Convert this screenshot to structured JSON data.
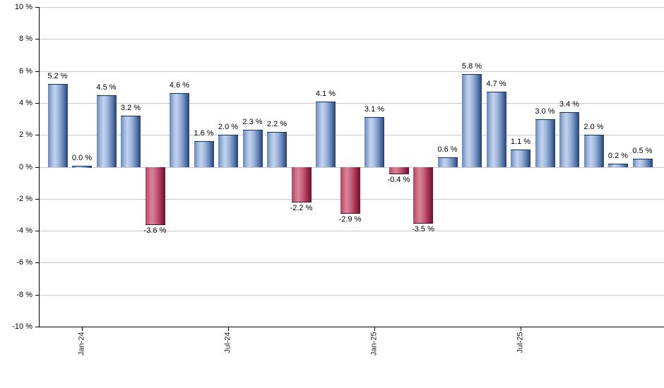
{
  "chart_data": {
    "type": "bar",
    "title": "",
    "xlabel": "",
    "ylabel": "",
    "ylim": [
      -10,
      10
    ],
    "grid": true,
    "y_ticks": [
      {
        "value": 10,
        "label": "10 %"
      },
      {
        "value": 8,
        "label": "8 %"
      },
      {
        "value": 6,
        "label": "6 %"
      },
      {
        "value": 4,
        "label": "4 %"
      },
      {
        "value": 2,
        "label": "2 %"
      },
      {
        "value": 0,
        "label": "0 %"
      },
      {
        "value": -2,
        "label": "-2 %"
      },
      {
        "value": -4,
        "label": "-4 %"
      },
      {
        "value": -6,
        "label": "-6 %"
      },
      {
        "value": -8,
        "label": "-8 %"
      },
      {
        "value": -10,
        "label": "-10 %"
      }
    ],
    "x_ticks": [
      {
        "index": 1,
        "label": "Jan-24"
      },
      {
        "index": 7,
        "label": "Jul-24"
      },
      {
        "index": 13,
        "label": "Jan-25"
      },
      {
        "index": 19,
        "label": "Jul-25"
      }
    ],
    "values": [
      5.2,
      0.0,
      4.5,
      3.2,
      -3.6,
      4.6,
      1.6,
      2.0,
      2.3,
      2.2,
      -2.2,
      4.1,
      -2.9,
      3.1,
      -0.4,
      -3.5,
      0.6,
      5.8,
      4.7,
      1.1,
      3.0,
      3.4,
      2.0,
      0.2,
      0.5
    ],
    "value_labels": [
      "5.2 %",
      "0.0 %",
      "4.5 %",
      "3.2 %",
      "-3.6 %",
      "4.6 %",
      "1.6 %",
      "2.0 %",
      "2.3 %",
      "2.2 %",
      "-2.2 %",
      "4.1 %",
      "-2.9 %",
      "3.1 %",
      "-0.4 %",
      "-3.5 %",
      "0.6 %",
      "5.8 %",
      "4.7 %",
      "1.1 %",
      "3.0 %",
      "3.4 %",
      "2.0 %",
      "0.2 %",
      "0.5 %"
    ],
    "colors": {
      "positive_mid": "#c3d3ec",
      "positive_edge": "#22406f",
      "negative_mid": "#da8298",
      "negative_edge": "#6e1130",
      "gridline": "#c9c9c9",
      "axis": "#000000",
      "label_text": "#000000"
    },
    "legend": null
  }
}
